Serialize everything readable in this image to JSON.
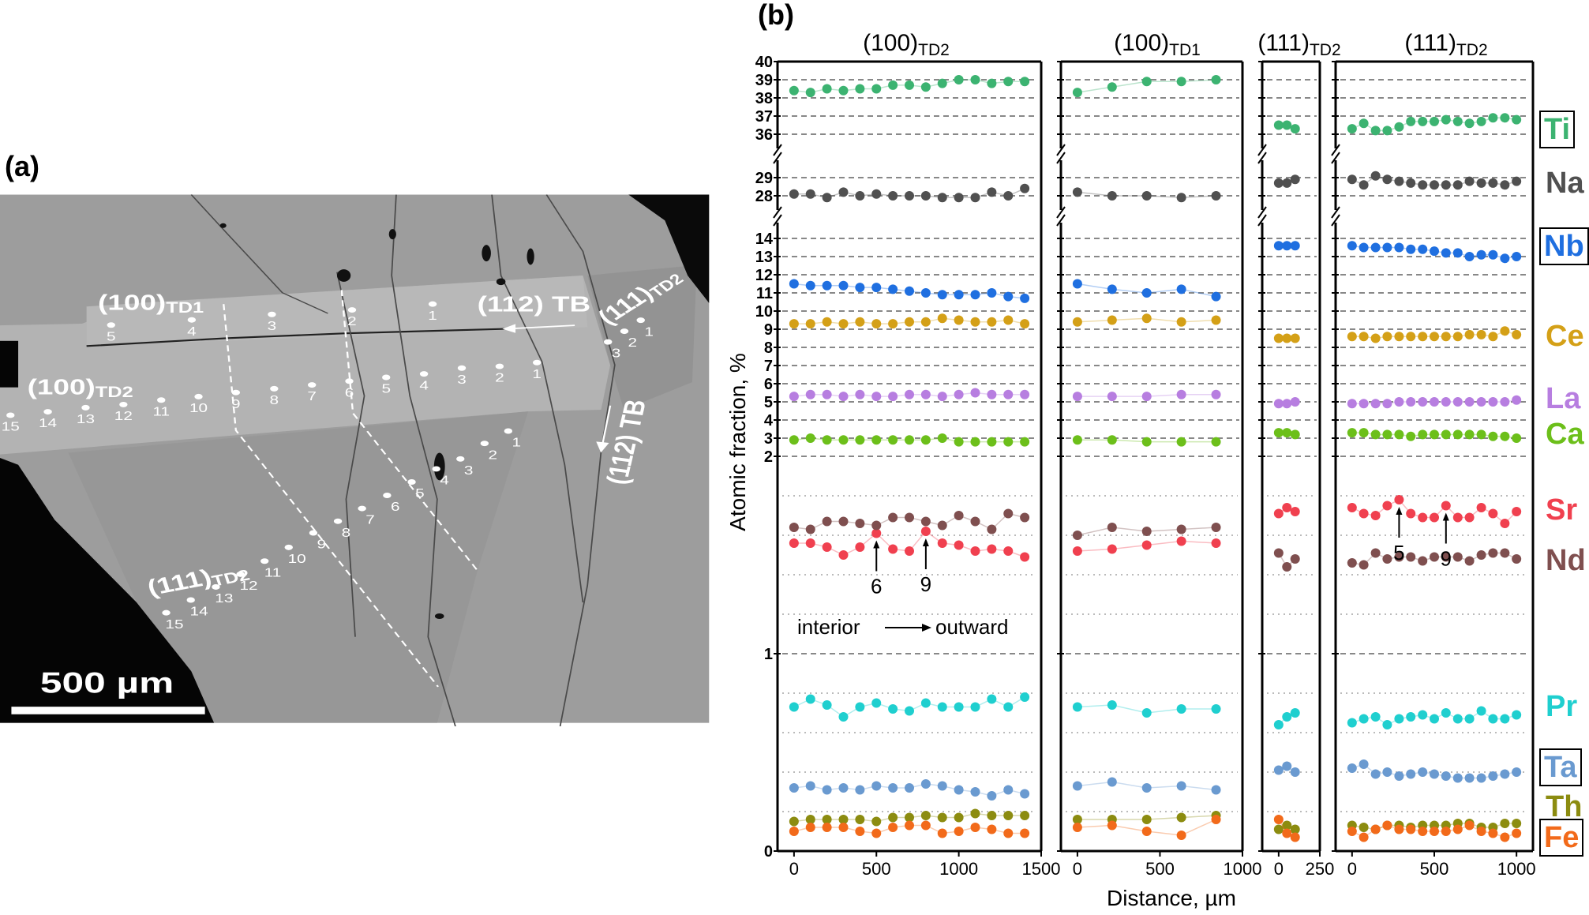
{
  "panel_a": {
    "label": "(a)",
    "labels": {
      "td1_main": "(100)",
      "td1_sub": "TD1",
      "td2_main": "(100)",
      "td2_sub": "TD2",
      "t111_main": "(111)",
      "t111_sub": "TD2",
      "t111r_main": "(111)",
      "t111r_sub": "TD2",
      "tb_horizontal": "(112) TB",
      "tb_vertical": "(112) TB"
    },
    "points_td1": [
      "1",
      "2",
      "3",
      "4",
      "5"
    ],
    "points_100td2": [
      "1",
      "2",
      "3",
      "4",
      "5",
      "6",
      "7",
      "8",
      "9",
      "10",
      "11",
      "12",
      "13",
      "14",
      "15"
    ],
    "points_111td2": [
      "1",
      "2",
      "3",
      "4",
      "5",
      "6",
      "7",
      "8",
      "9",
      "10",
      "11",
      "12",
      "13",
      "14",
      "15"
    ],
    "points_111td2_right": [
      "1",
      "2",
      "3"
    ],
    "scale_bar": "500 µm"
  },
  "panel_b": {
    "label": "(b)",
    "ylabel": "Atomic fraction, %",
    "xlabel": "Distance, µm",
    "annotation": {
      "left": "interior",
      "right": "outward"
    }
  },
  "chart_data": {
    "type": "scatter",
    "ylabel": "Atomic fraction, %",
    "xlabel": "Distance, µm",
    "y_axis": {
      "broken": true,
      "segments": [
        [
          0,
          2
        ],
        [
          2,
          14.5
        ],
        [
          27.3,
          29.6
        ],
        [
          35.5,
          40
        ]
      ],
      "ticks": [
        "40",
        "39",
        "38",
        "37",
        "36",
        "29",
        "28",
        "14",
        "13",
        "12",
        "11",
        "10",
        "9",
        "8",
        "7",
        "6",
        "5",
        "4",
        "3",
        "2",
        "1",
        "0"
      ],
      "dashed_grid": [
        39,
        38,
        37,
        36,
        29,
        28,
        14,
        13,
        12,
        11,
        10,
        9,
        8,
        7,
        6,
        5,
        4,
        3,
        2,
        1
      ],
      "dotted_grid": [
        0.2,
        0.4,
        0.6,
        0.8,
        1.2,
        1.4,
        1.6,
        1.8
      ]
    },
    "elements": [
      {
        "name": "Ti",
        "color": "#3cb371",
        "boxed": true
      },
      {
        "name": "Na",
        "color": "#505050",
        "boxed": false
      },
      {
        "name": "Nb",
        "color": "#1f6fe0",
        "boxed": true
      },
      {
        "name": "Ce",
        "color": "#d4a017",
        "boxed": false
      },
      {
        "name": "La",
        "color": "#b77ee0",
        "boxed": false
      },
      {
        "name": "Ca",
        "color": "#6cbf1a",
        "boxed": false
      },
      {
        "name": "Sr",
        "color": "#f0404f",
        "boxed": false
      },
      {
        "name": "Nd",
        "color": "#7f4f4f",
        "boxed": false
      },
      {
        "name": "Pr",
        "color": "#1fcfcf",
        "boxed": false
      },
      {
        "name": "Ta",
        "color": "#6a9ad0",
        "boxed": true
      },
      {
        "name": "Th",
        "color": "#8c8c10",
        "boxed": false
      },
      {
        "name": "Fe",
        "color": "#f26a1a",
        "boxed": true
      }
    ],
    "panels": [
      {
        "title_main": "(100)",
        "title_sub": "TD2",
        "xlim": [
          -100,
          1500
        ],
        "xticks": [
          "0",
          "500",
          "1000",
          "1500"
        ],
        "x": [
          0,
          100,
          200,
          300,
          400,
          500,
          600,
          700,
          800,
          900,
          1000,
          1100,
          1200,
          1300,
          1400
        ],
        "series": {
          "Ti": [
            38.4,
            38.3,
            38.5,
            38.4,
            38.5,
            38.5,
            38.7,
            38.7,
            38.6,
            38.8,
            39.0,
            39.0,
            38.8,
            38.9,
            38.9
          ],
          "Na": [
            28.1,
            28.1,
            27.9,
            28.2,
            28.0,
            28.1,
            28.0,
            28.0,
            28.0,
            27.9,
            27.9,
            27.9,
            28.2,
            28.0,
            28.4
          ],
          "Nb": [
            11.5,
            11.4,
            11.4,
            11.4,
            11.3,
            11.3,
            11.2,
            11.1,
            11.0,
            10.9,
            10.9,
            10.9,
            11.0,
            10.8,
            10.7
          ],
          "Ce": [
            9.3,
            9.3,
            9.4,
            9.3,
            9.4,
            9.3,
            9.3,
            9.4,
            9.4,
            9.6,
            9.5,
            9.4,
            9.4,
            9.5,
            9.3
          ],
          "La": [
            5.3,
            5.4,
            5.4,
            5.3,
            5.4,
            5.3,
            5.3,
            5.4,
            5.4,
            5.3,
            5.4,
            5.5,
            5.4,
            5.4,
            5.4
          ],
          "Ca": [
            2.9,
            3.0,
            2.9,
            2.9,
            2.9,
            2.9,
            2.9,
            2.9,
            2.9,
            3.0,
            2.8,
            2.8,
            2.8,
            2.8,
            2.8
          ],
          "Sr": [
            1.56,
            1.56,
            1.54,
            1.5,
            1.54,
            1.61,
            1.53,
            1.52,
            1.62,
            1.56,
            1.55,
            1.52,
            1.53,
            1.52,
            1.49
          ],
          "Nd": [
            1.64,
            1.63,
            1.67,
            1.67,
            1.66,
            1.65,
            1.69,
            1.69,
            1.67,
            1.65,
            1.7,
            1.67,
            1.63,
            1.71,
            1.69
          ],
          "Pr": [
            0.73,
            0.77,
            0.74,
            0.68,
            0.73,
            0.75,
            0.72,
            0.71,
            0.75,
            0.73,
            0.73,
            0.73,
            0.77,
            0.73,
            0.78
          ],
          "Ta": [
            0.32,
            0.33,
            0.31,
            0.32,
            0.31,
            0.33,
            0.32,
            0.32,
            0.34,
            0.33,
            0.31,
            0.3,
            0.28,
            0.31,
            0.29
          ],
          "Th": [
            0.15,
            0.16,
            0.16,
            0.16,
            0.16,
            0.15,
            0.17,
            0.17,
            0.18,
            0.17,
            0.17,
            0.19,
            0.18,
            0.18,
            0.18
          ],
          "Fe": [
            0.1,
            0.12,
            0.12,
            0.12,
            0.1,
            0.09,
            0.12,
            0.13,
            0.13,
            0.09,
            0.1,
            0.12,
            0.11,
            0.09,
            0.09
          ]
        },
        "annotations": [
          {
            "text": "6",
            "x": 500,
            "element": "Sr"
          },
          {
            "text": "9",
            "x": 800,
            "element": "Sr"
          }
        ]
      },
      {
        "title_main": "(100)",
        "title_sub": "TD1",
        "xlim": [
          -100,
          1000
        ],
        "xticks": [
          "0",
          "500",
          "1000"
        ],
        "x": [
          0,
          210,
          420,
          630,
          840
        ],
        "series": {
          "Ti": [
            38.3,
            38.6,
            38.9,
            38.9,
            39.0
          ],
          "Na": [
            28.2,
            28.0,
            28.0,
            27.9,
            28.0
          ],
          "Nb": [
            11.5,
            11.2,
            11.0,
            11.2,
            10.8
          ],
          "Ce": [
            9.4,
            9.5,
            9.6,
            9.4,
            9.5
          ],
          "La": [
            5.3,
            5.3,
            5.3,
            5.4,
            5.4
          ],
          "Ca": [
            2.9,
            2.9,
            2.8,
            2.8,
            2.8
          ],
          "Sr": [
            1.52,
            1.53,
            1.55,
            1.57,
            1.56
          ],
          "Nd": [
            1.6,
            1.64,
            1.62,
            1.63,
            1.64
          ],
          "Pr": [
            0.73,
            0.74,
            0.7,
            0.72,
            0.72
          ],
          "Ta": [
            0.33,
            0.35,
            0.32,
            0.33,
            0.31
          ],
          "Th": [
            0.16,
            0.16,
            0.16,
            0.17,
            0.18
          ],
          "Fe": [
            0.12,
            0.13,
            0.1,
            0.08,
            0.16
          ]
        },
        "annotations": []
      },
      {
        "title_main": "(111)",
        "title_sub": "TD2",
        "xlim": [
          -100,
          250
        ],
        "xticks": [
          "0",
          "250"
        ],
        "x": [
          0,
          50,
          100
        ],
        "series": {
          "Ti": [
            36.5,
            36.5,
            36.3
          ],
          "Na": [
            28.7,
            28.7,
            28.9
          ],
          "Nb": [
            13.6,
            13.6,
            13.6
          ],
          "Ce": [
            8.5,
            8.5,
            8.5
          ],
          "La": [
            4.9,
            4.9,
            5.0
          ],
          "Ca": [
            3.3,
            3.3,
            3.2
          ],
          "Sr": [
            1.71,
            1.74,
            1.72
          ],
          "Nd": [
            1.51,
            1.44,
            1.48
          ],
          "Pr": [
            0.64,
            0.68,
            0.7
          ],
          "Ta": [
            0.41,
            0.43,
            0.4
          ],
          "Th": [
            0.11,
            0.13,
            0.11
          ],
          "Fe": [
            0.16,
            0.09,
            0.07
          ]
        },
        "annotations": []
      },
      {
        "title_main": "(111)",
        "title_sub": "TD2",
        "xlim": [
          -100,
          1100
        ],
        "xticks": [
          "0",
          "500",
          "1000"
        ],
        "x": [
          0,
          71,
          143,
          214,
          286,
          357,
          429,
          500,
          571,
          643,
          714,
          786,
          857,
          929,
          1000
        ],
        "series": {
          "Ti": [
            36.3,
            36.6,
            36.2,
            36.2,
            36.4,
            36.7,
            36.7,
            36.7,
            36.8,
            36.7,
            36.6,
            36.7,
            36.9,
            36.9,
            36.8
          ],
          "Na": [
            28.9,
            28.6,
            29.1,
            28.9,
            28.8,
            28.7,
            28.6,
            28.6,
            28.6,
            28.6,
            28.8,
            28.7,
            28.7,
            28.6,
            28.8
          ],
          "Nb": [
            13.6,
            13.5,
            13.5,
            13.5,
            13.5,
            13.4,
            13.4,
            13.3,
            13.2,
            13.2,
            13.0,
            13.1,
            13.1,
            12.9,
            13.0
          ],
          "Ce": [
            8.6,
            8.6,
            8.5,
            8.6,
            8.6,
            8.6,
            8.6,
            8.6,
            8.6,
            8.6,
            8.7,
            8.7,
            8.6,
            8.9,
            8.7
          ],
          "La": [
            4.9,
            4.9,
            4.9,
            4.9,
            5.0,
            5.0,
            5.0,
            5.0,
            5.0,
            5.0,
            5.0,
            5.0,
            5.0,
            5.0,
            5.1
          ],
          "Ca": [
            3.3,
            3.3,
            3.2,
            3.2,
            3.2,
            3.1,
            3.2,
            3.2,
            3.2,
            3.2,
            3.2,
            3.2,
            3.1,
            3.1,
            3.0
          ],
          "Sr": [
            1.74,
            1.71,
            1.7,
            1.75,
            1.78,
            1.71,
            1.69,
            1.69,
            1.75,
            1.69,
            1.69,
            1.74,
            1.71,
            1.66,
            1.72
          ],
          "Nd": [
            1.46,
            1.45,
            1.51,
            1.48,
            1.49,
            1.49,
            1.47,
            1.49,
            1.49,
            1.49,
            1.47,
            1.5,
            1.51,
            1.51,
            1.48
          ],
          "Pr": [
            0.65,
            0.67,
            0.68,
            0.64,
            0.67,
            0.68,
            0.69,
            0.67,
            0.7,
            0.67,
            0.67,
            0.71,
            0.67,
            0.67,
            0.69
          ],
          "Ta": [
            0.42,
            0.44,
            0.39,
            0.4,
            0.38,
            0.39,
            0.4,
            0.39,
            0.38,
            0.37,
            0.37,
            0.37,
            0.38,
            0.39,
            0.4
          ],
          "Th": [
            0.13,
            0.12,
            0.11,
            0.13,
            0.13,
            0.12,
            0.13,
            0.13,
            0.13,
            0.14,
            0.14,
            0.12,
            0.12,
            0.14,
            0.14
          ],
          "Fe": [
            0.1,
            0.07,
            0.11,
            0.13,
            0.11,
            0.11,
            0.1,
            0.1,
            0.1,
            0.11,
            0.13,
            0.1,
            0.09,
            0.07,
            0.09
          ]
        },
        "annotations": [
          {
            "text": "5",
            "x": 286,
            "element": "Sr"
          },
          {
            "text": "9",
            "x": 571,
            "element": "Sr"
          }
        ]
      }
    ]
  }
}
